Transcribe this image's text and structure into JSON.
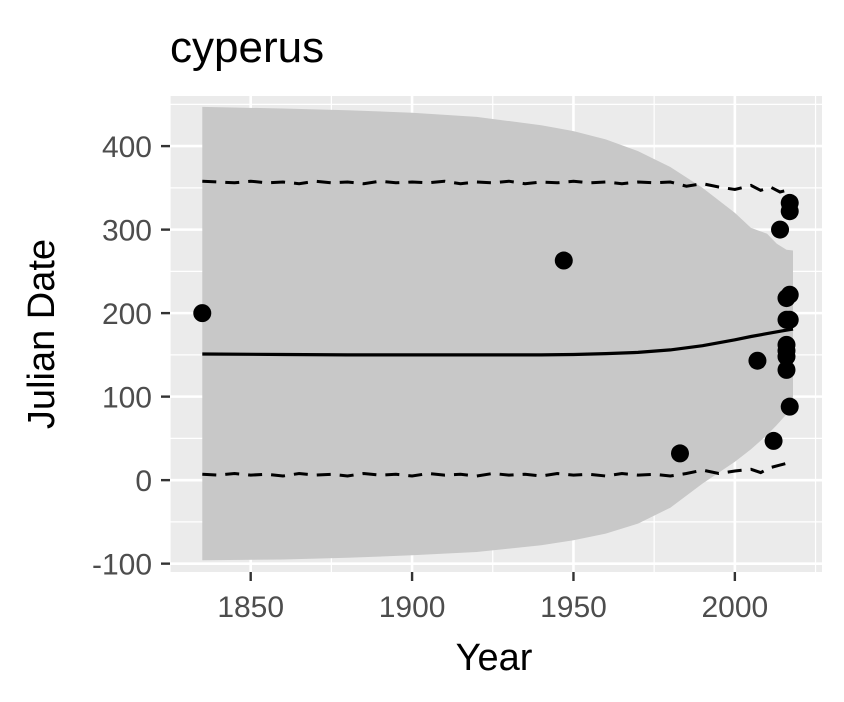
{
  "chart_data": {
    "type": "scatter",
    "title": "cyperus",
    "xlabel": "Year",
    "ylabel": "Julian Date",
    "xlim": [
      1825,
      2027
    ],
    "ylim": [
      -110,
      460
    ],
    "x_ticks": [
      1850,
      1900,
      1950,
      2000
    ],
    "x_tick_labels": [
      "1850",
      "1900",
      "1950",
      "2000"
    ],
    "y_ticks": [
      -100,
      0,
      100,
      200,
      300,
      400
    ],
    "y_tick_labels": [
      "-100",
      "0",
      "100",
      "200",
      "300",
      "400"
    ],
    "grid": true,
    "legend": "none",
    "colors": {
      "panel": "#ebebeb",
      "grid": "#ffffff",
      "ribbon": "#c8c8c8",
      "line": "#000000",
      "points": "#000000",
      "tick_text": "#4d4d4d"
    },
    "points": [
      {
        "x": 1835,
        "y": 200
      },
      {
        "x": 1947,
        "y": 263
      },
      {
        "x": 1983,
        "y": 32
      },
      {
        "x": 2007,
        "y": 143
      },
      {
        "x": 2012,
        "y": 47
      },
      {
        "x": 2014,
        "y": 300
      },
      {
        "x": 2016,
        "y": 218
      },
      {
        "x": 2016,
        "y": 192
      },
      {
        "x": 2016,
        "y": 162
      },
      {
        "x": 2016,
        "y": 155
      },
      {
        "x": 2016,
        "y": 148
      },
      {
        "x": 2016,
        "y": 132
      },
      {
        "x": 2017,
        "y": 88
      },
      {
        "x": 2017,
        "y": 222
      },
      {
        "x": 2017,
        "y": 192
      },
      {
        "x": 2017,
        "y": 332
      },
      {
        "x": 2017,
        "y": 322
      }
    ],
    "fit_line": {
      "x": [
        1835,
        1860,
        1880,
        1900,
        1920,
        1940,
        1950,
        1960,
        1970,
        1980,
        1990,
        2000,
        2005,
        2010,
        2015,
        2018
      ],
      "y": [
        151,
        150.5,
        150,
        150,
        150,
        150,
        150.5,
        151.5,
        153,
        156,
        161,
        168,
        172,
        175.5,
        179,
        181
      ]
    },
    "ribbon": {
      "x": [
        1835,
        1860,
        1880,
        1900,
        1920,
        1940,
        1950,
        1960,
        1970,
        1980,
        1990,
        2000,
        2005,
        2010,
        2013,
        2016,
        2018
      ],
      "upper": [
        447,
        445,
        443,
        440,
        435,
        425,
        418,
        408,
        394,
        375,
        350,
        320,
        302,
        295,
        283,
        276,
        275
      ],
      "lower": [
        -96,
        -95,
        -93,
        -90,
        -86,
        -78,
        -72,
        -64,
        -52,
        -33,
        -4,
        22,
        37,
        54,
        66,
        79,
        82
      ]
    },
    "upper_band": {
      "x": [
        1835,
        1840,
        1845,
        1850,
        1855,
        1860,
        1865,
        1870,
        1875,
        1880,
        1885,
        1890,
        1895,
        1900,
        1905,
        1910,
        1915,
        1920,
        1925,
        1930,
        1935,
        1940,
        1945,
        1950,
        1955,
        1960,
        1965,
        1970,
        1975,
        1980,
        1985,
        1990,
        1995,
        2000,
        2005,
        2008,
        2011,
        2014,
        2016,
        2018
      ],
      "y": [
        358,
        357,
        356,
        358,
        356,
        357,
        355,
        358,
        356,
        357,
        355,
        358,
        356,
        357,
        356,
        358,
        355,
        357,
        356,
        358,
        355,
        357,
        356,
        358,
        356,
        357,
        355,
        357,
        356,
        357,
        352,
        355,
        351,
        348,
        353,
        347,
        351,
        345,
        347,
        345
      ]
    },
    "lower_band": {
      "x": [
        1835,
        1840,
        1845,
        1850,
        1855,
        1860,
        1865,
        1870,
        1875,
        1880,
        1885,
        1890,
        1895,
        1900,
        1905,
        1910,
        1915,
        1920,
        1925,
        1930,
        1935,
        1940,
        1945,
        1950,
        1955,
        1960,
        1965,
        1970,
        1975,
        1980,
        1985,
        1990,
        1995,
        2000,
        2005,
        2008,
        2011,
        2014,
        2016,
        2018
      ],
      "y": [
        7,
        6,
        8,
        6,
        7,
        5,
        8,
        6,
        7,
        5,
        8,
        6,
        7,
        5,
        8,
        6,
        7,
        5,
        8,
        6,
        7,
        5,
        8,
        6,
        7,
        5,
        8,
        6,
        7,
        5,
        8,
        12,
        8,
        11,
        13,
        9,
        15,
        18,
        20,
        21
      ]
    }
  }
}
